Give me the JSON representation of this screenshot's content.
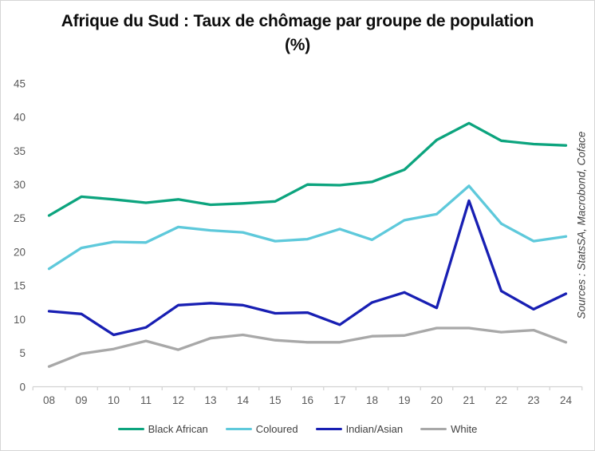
{
  "source_note": "Sources : StatsSA, Macrobond, Coface",
  "colors": {
    "axis_text": "#595959",
    "axis_line": "#d2d2d2",
    "legend_text": "#404040",
    "title_text": "#0d0d0d",
    "source_text": "#3f3f3f",
    "background": "#ffffff"
  },
  "chart_data": {
    "type": "line",
    "title": "Afrique du Sud : Taux de chômage par groupe de population (%)",
    "xlabel": "",
    "ylabel": "",
    "ylim": [
      0,
      45
    ],
    "y_ticks": [
      45,
      40,
      35,
      30,
      25,
      20,
      15,
      10,
      5,
      0
    ],
    "grid": false,
    "legend_position": "bottom",
    "x_labels": [
      "08",
      "09",
      "10",
      "11",
      "12",
      "13",
      "14",
      "15",
      "16",
      "17",
      "18",
      "19",
      "20",
      "21",
      "22",
      "23",
      "24"
    ],
    "series": [
      {
        "name": "Black African",
        "color": "#0ca47e",
        "values": [
          25.4,
          28.2,
          27.8,
          27.3,
          27.8,
          27.0,
          27.2,
          27.5,
          30.0,
          29.9,
          30.4,
          32.2,
          36.6,
          39.1,
          36.5,
          36.0,
          35.8
        ]
      },
      {
        "name": "Coloured",
        "color": "#5ec9db",
        "values": [
          17.5,
          20.6,
          21.5,
          21.4,
          23.7,
          23.2,
          22.9,
          21.6,
          21.9,
          23.4,
          21.8,
          24.7,
          25.6,
          29.8,
          24.2,
          21.6,
          22.3
        ]
      },
      {
        "name": "Indian/Asian",
        "color": "#181fb3",
        "values": [
          11.2,
          10.8,
          7.7,
          8.8,
          12.1,
          12.4,
          12.1,
          10.9,
          11.0,
          9.2,
          12.5,
          14.0,
          11.7,
          27.6,
          14.2,
          11.5,
          13.8
        ]
      },
      {
        "name": "White",
        "color": "#a8a8a8",
        "values": [
          3.0,
          4.9,
          5.6,
          6.8,
          5.5,
          7.2,
          7.7,
          6.9,
          6.6,
          6.6,
          7.5,
          7.6,
          8.7,
          8.7,
          8.1,
          8.4,
          6.6
        ]
      }
    ]
  }
}
